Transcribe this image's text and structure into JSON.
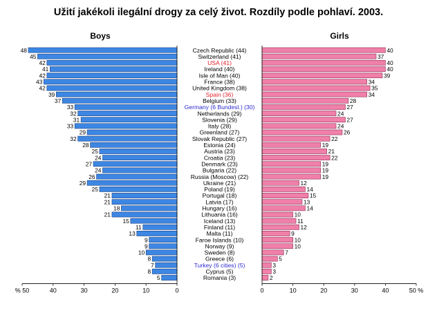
{
  "chart_data": {
    "type": "bar",
    "title": "Užití jakékoli ilegální drogy za celý život. Rozdíly podle pohlaví. 2003.",
    "panels": {
      "left": {
        "title": "Boys",
        "unit_label": "% 50",
        "ticks": [
          50,
          40,
          30,
          20,
          10,
          0
        ],
        "xlim": [
          0,
          50
        ]
      },
      "right": {
        "title": "Girls",
        "unit_label": "50 %",
        "ticks": [
          0,
          10,
          20,
          30,
          40,
          50
        ],
        "xlim": [
          0,
          50
        ]
      }
    },
    "categories": [
      "Czech Republic (44)",
      "Switzerland (41)",
      "USA (41)",
      "Ireland (40)",
      "Isle of Man (40)",
      "France (38)",
      "United Kingdom (38)",
      "Spain (36)",
      "Belgium (33)",
      "Germany (6 Bundesl.) (30)",
      "Netherlands (29)",
      "Slovenia (29)",
      "Italy (28)",
      "Greenland (27)",
      "Slovak Republic (27)",
      "Estonia (24)",
      "Austria (23)",
      "Croatia (23)",
      "Denmark (23)",
      "Bulgaria (22)",
      "Russia (Moscow) (22)",
      "Ukraine (21)",
      "Poland (19)",
      "Portugal (18)",
      "Latvia (17)",
      "Hungary (16)",
      "Lithuania (16)",
      "Iceland (13)",
      "Finland (11)",
      "Malta (11)",
      "Faroe Islands (10)",
      "Norway (9)",
      "Sweden (8)",
      "Greece (6)",
      "Turkey (6 cities) (5)",
      "Cyprus (5)",
      "Romania (3)"
    ],
    "category_colors": {
      "USA (41)": "#e8202a",
      "Spain (36)": "#e8202a",
      "Germany (6 Bundesl.) (30)": "#2a2ad0",
      "Turkey (6 cities) (5)": "#2a2ad0"
    },
    "series": [
      {
        "name": "Boys",
        "color": "#3d87e3",
        "values": [
          48,
          45,
          42,
          41,
          42,
          43,
          42,
          39,
          37,
          33,
          32,
          31,
          33,
          29,
          32,
          28,
          25,
          24,
          27,
          24,
          26,
          29,
          25,
          21,
          21,
          18,
          21,
          15,
          11,
          13,
          9,
          9,
          10,
          8,
          7,
          8,
          5
        ]
      },
      {
        "name": "Girls",
        "color": "#f080a8",
        "values": [
          40,
          37,
          40,
          40,
          39,
          34,
          35,
          34,
          28,
          27,
          24,
          27,
          24,
          26,
          22,
          19,
          21,
          22,
          19,
          19,
          19,
          12,
          14,
          15,
          13,
          14,
          10,
          11,
          12,
          9,
          10,
          10,
          7,
          5,
          3,
          3,
          2
        ]
      }
    ]
  }
}
